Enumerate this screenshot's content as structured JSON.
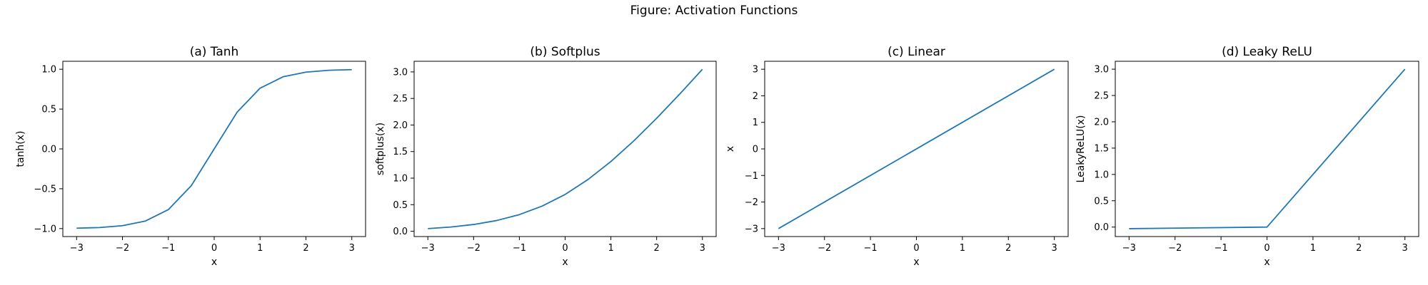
{
  "figure": {
    "title": "Figure: Activation Functions"
  },
  "style": {
    "line_color": "#1f77b4",
    "axis_color": "#000000",
    "background": "#ffffff"
  },
  "chart_data": [
    {
      "type": "line",
      "function": "tanh",
      "title": "(a) Tanh",
      "xlabel": "x",
      "ylabel": "tanh(x)",
      "xlim": [
        -3.3,
        3.3
      ],
      "ylim": [
        -1.1,
        1.1
      ],
      "xticks": [
        -3,
        -2,
        -1,
        0,
        1,
        2,
        3
      ],
      "yticks": [
        -1.0,
        -0.5,
        0.0,
        0.5,
        1.0
      ],
      "ytick_labels": [
        "−1.0",
        "−0.5",
        "0.0",
        "0.5",
        "1.0"
      ],
      "x": [
        -3,
        -2.5,
        -2,
        -1.5,
        -1,
        -0.5,
        0,
        0.5,
        1,
        1.5,
        2,
        2.5,
        3
      ],
      "y": [
        -0.995,
        -0.987,
        -0.964,
        -0.905,
        -0.762,
        -0.462,
        0.0,
        0.462,
        0.762,
        0.905,
        0.964,
        0.987,
        0.995
      ],
      "grid": false
    },
    {
      "type": "line",
      "function": "softplus",
      "title": "(b) Softplus",
      "xlabel": "x",
      "ylabel": "softplus(x)",
      "xlim": [
        -3.3,
        3.3
      ],
      "ylim": [
        -0.1,
        3.2
      ],
      "xticks": [
        -3,
        -2,
        -1,
        0,
        1,
        2,
        3
      ],
      "yticks": [
        0.0,
        0.5,
        1.0,
        1.5,
        2.0,
        2.5,
        3.0
      ],
      "ytick_labels": [
        "0.0",
        "0.5",
        "1.0",
        "1.5",
        "2.0",
        "2.5",
        "3.0"
      ],
      "x": [
        -3,
        -2.5,
        -2,
        -1.5,
        -1,
        -0.5,
        0,
        0.5,
        1,
        1.5,
        2,
        2.5,
        3
      ],
      "y": [
        0.049,
        0.079,
        0.127,
        0.201,
        0.313,
        0.474,
        0.693,
        0.974,
        1.313,
        1.701,
        2.127,
        2.579,
        3.049
      ],
      "grid": false
    },
    {
      "type": "line",
      "function": "linear",
      "title": "(c) Linear",
      "xlabel": "x",
      "ylabel": "x",
      "xlim": [
        -3.3,
        3.3
      ],
      "ylim": [
        -3.3,
        3.3
      ],
      "xticks": [
        -3,
        -2,
        -1,
        0,
        1,
        2,
        3
      ],
      "yticks": [
        -3,
        -2,
        -1,
        0,
        1,
        2,
        3
      ],
      "ytick_labels": [
        "−3",
        "−2",
        "−1",
        "0",
        "1",
        "2",
        "3"
      ],
      "x": [
        -3,
        3
      ],
      "y": [
        -3,
        3
      ],
      "grid": false
    },
    {
      "type": "line",
      "function": "leaky_relu",
      "title": "(d) Leaky ReLU",
      "xlabel": "x",
      "ylabel": "LeakyReLU(x)",
      "xlim": [
        -3.3,
        3.3
      ],
      "ylim": [
        -0.18,
        3.15
      ],
      "xticks": [
        -3,
        -2,
        -1,
        0,
        1,
        2,
        3
      ],
      "yticks": [
        0.0,
        0.5,
        1.0,
        1.5,
        2.0,
        2.5,
        3.0
      ],
      "ytick_labels": [
        "0.0",
        "0.5",
        "1.0",
        "1.5",
        "2.0",
        "2.5",
        "3.0"
      ],
      "x": [
        -3,
        0,
        3
      ],
      "y": [
        -0.03,
        0,
        3
      ],
      "grid": false
    }
  ]
}
